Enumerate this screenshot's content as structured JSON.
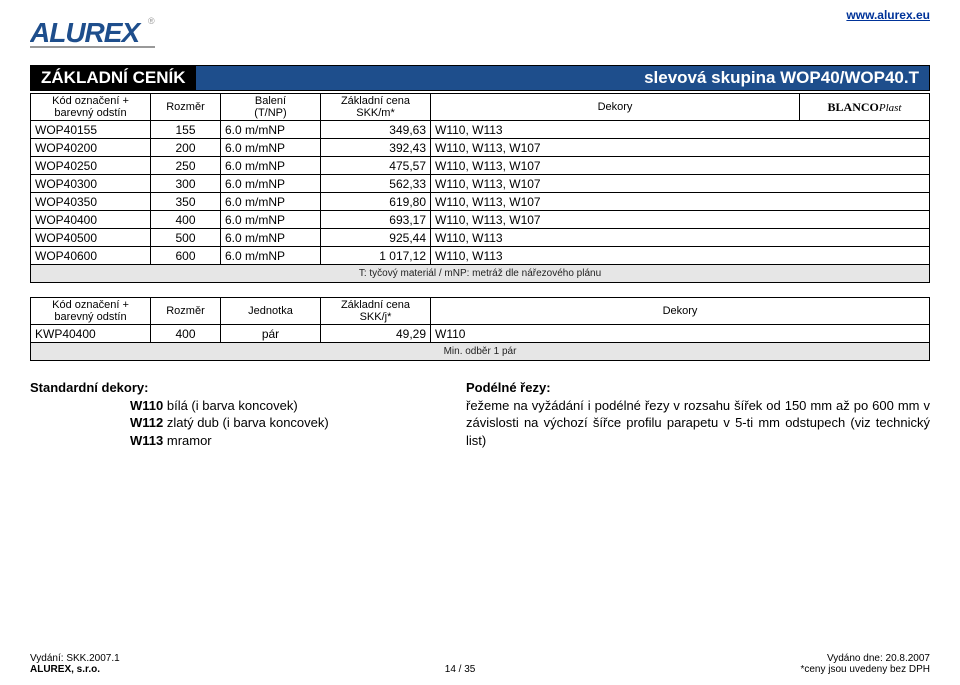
{
  "link": {
    "url": "www.alurex.eu"
  },
  "logo": {
    "text": "ALUREX",
    "color": "#1e4e8c"
  },
  "header": {
    "left": "ZÁKLADNÍ CENÍK",
    "right": "slevová skupina WOP40/WOP40.T"
  },
  "table1": {
    "columns": {
      "code": "Kód označení +\nbarevný odstín",
      "size": "Rozměr",
      "pack": "Balení\n(T/NP)",
      "price": "Základní cena\nSKK/m*",
      "decor": "Dekory",
      "brand_main": "BLANCO",
      "brand_sub": "Plast"
    },
    "rows": [
      {
        "code": "WOP40155",
        "size": "155",
        "pack": "6.0 m/mNP",
        "price": "349,63",
        "decor": "W110, W113"
      },
      {
        "code": "WOP40200",
        "size": "200",
        "pack": "6.0 m/mNP",
        "price": "392,43",
        "decor": "W110, W113, W107"
      },
      {
        "code": "WOP40250",
        "size": "250",
        "pack": "6.0 m/mNP",
        "price": "475,57",
        "decor": "W110, W113, W107"
      },
      {
        "code": "WOP40300",
        "size": "300",
        "pack": "6.0 m/mNP",
        "price": "562,33",
        "decor": "W110, W113, W107"
      },
      {
        "code": "WOP40350",
        "size": "350",
        "pack": "6.0 m/mNP",
        "price": "619,80",
        "decor": "W110, W113, W107"
      },
      {
        "code": "WOP40400",
        "size": "400",
        "pack": "6.0 m/mNP",
        "price": "693,17",
        "decor": "W110, W113, W107"
      },
      {
        "code": "WOP40500",
        "size": "500",
        "pack": "6.0 m/mNP",
        "price": "925,44",
        "decor": "W110, W113"
      },
      {
        "code": "WOP40600",
        "size": "600",
        "pack": "6.0 m/mNP",
        "price": "1 017,12",
        "decor": "W110, W113"
      }
    ],
    "note": "T: tyčový materiál / mNP: metráž dle nářezového plánu"
  },
  "table2": {
    "columns": {
      "code": "Kód označení +\nbarevný odstín",
      "size": "Rozměr",
      "unit": "Jednotka",
      "price": "Základní cena\nSKK/j*",
      "decor": "Dekory"
    },
    "rows": [
      {
        "code": "KWP40400",
        "size": "400",
        "unit": "pár",
        "price": "49,29",
        "decor": "W110"
      }
    ],
    "note": "Min. odběr 1 pár"
  },
  "decors": {
    "title": "Standardní dekory:",
    "items": [
      {
        "code": "W110",
        "text": " bílá (i barva koncovek)"
      },
      {
        "code": "W112",
        "text": " zlatý dub (i barva koncovek)"
      },
      {
        "code": "W113",
        "text": " mramor"
      }
    ]
  },
  "cuts": {
    "title": "Podélné řezy:",
    "text": "řežeme na vyžádání i podélné řezy v rozsahu šířek od 150 mm až po 600 mm v závislosti na výchozí šířce profilu parapetu v 5-ti mm odstupech (viz technický list)"
  },
  "footer": {
    "l1": "Vydání: SKK.2007.1",
    "l2": "ALUREX, s.r.o.",
    "mid": "14 / 35",
    "r1": "Vydáno dne: 20.8.2007",
    "r2": "*ceny jsou uvedeny bez DPH"
  }
}
